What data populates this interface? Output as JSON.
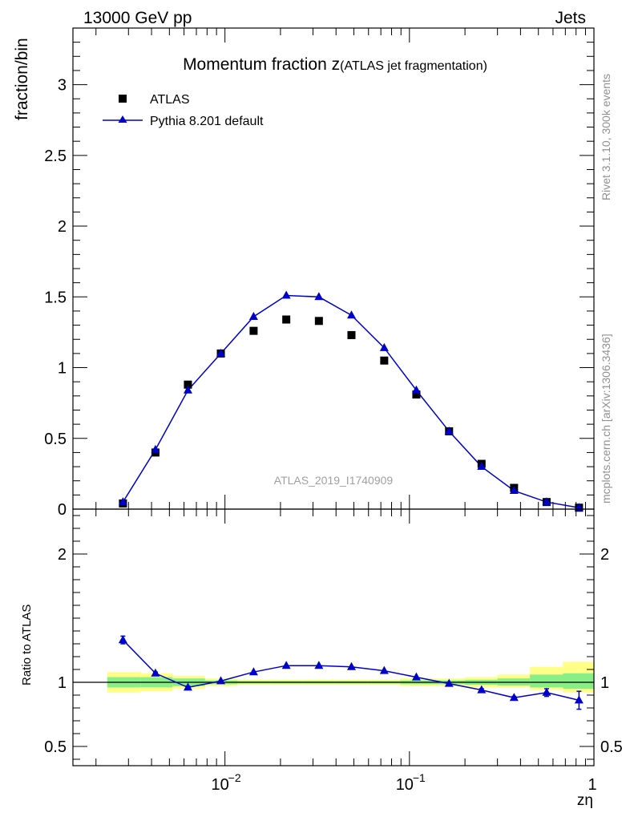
{
  "header": {
    "left": "13000 GeV pp",
    "right": "Jets"
  },
  "side_labels": {
    "events": "Rivet 3.1.10,  300k events",
    "source": "mcplots.cern.ch [arXiv:1306.3436]"
  },
  "watermark": "ATLAS_2019_I1740909",
  "chart_data": [
    {
      "type": "scatter",
      "title": "Momentum fraction z",
      "title_suffix": "(ATLAS jet fragmentation)",
      "ylabel": "fraction/bin",
      "xscale": "log",
      "xlim": [
        0.0015,
        1
      ],
      "ylim": [
        0,
        3.4
      ],
      "yticks": [
        0,
        0.5,
        1,
        1.5,
        2,
        2.5,
        3
      ],
      "ytick_labels": [
        "0",
        "0.5",
        "1",
        "1.5",
        "2",
        "2.5",
        "3"
      ],
      "legend_position": "top-left",
      "series": [
        {
          "name": "ATLAS",
          "marker": "square",
          "color": "#000000",
          "x": [
            0.0028,
            0.0042,
            0.0063,
            0.0095,
            0.0143,
            0.0215,
            0.0323,
            0.0485,
            0.073,
            0.109,
            0.164,
            0.246,
            0.369,
            0.554,
            0.83
          ],
          "y": [
            0.04,
            0.4,
            0.88,
            1.1,
            1.26,
            1.34,
            1.33,
            1.23,
            1.05,
            0.81,
            0.55,
            0.32,
            0.15,
            0.05,
            0.01
          ]
        },
        {
          "name": "Pythia 8.201 default",
          "marker": "triangle",
          "line": true,
          "color": "#0000cc",
          "x": [
            0.0028,
            0.0042,
            0.0063,
            0.0095,
            0.0143,
            0.0215,
            0.0323,
            0.0485,
            0.073,
            0.109,
            0.164,
            0.246,
            0.369,
            0.554,
            0.83
          ],
          "y": [
            0.05,
            0.42,
            0.84,
            1.1,
            1.36,
            1.51,
            1.5,
            1.37,
            1.14,
            0.84,
            0.55,
            0.3,
            0.13,
            0.05,
            0.01
          ]
        }
      ]
    },
    {
      "type": "line",
      "ylabel": "Ratio to ATLAS",
      "xlabel": "zη",
      "xscale": "log",
      "xlim": [
        0.0015,
        1
      ],
      "ylim": [
        0.35,
        2.35
      ],
      "yticks": [
        0.5,
        1,
        2
      ],
      "ytick_labels": [
        "0.5",
        "1",
        "2"
      ],
      "xticks": [
        0.01,
        0.1,
        1
      ],
      "xtick_labels": [
        "10",
        "10",
        "1"
      ],
      "xtick_exponents": [
        "−2",
        "−1",
        ""
      ],
      "reference_line": 1,
      "bin_edges": [
        0.0023,
        0.0035,
        0.0052,
        0.0078,
        0.0117,
        0.0176,
        0.0264,
        0.0396,
        0.0594,
        0.089,
        0.134,
        0.2,
        0.3,
        0.45,
        0.68,
        1.0
      ],
      "band_outer": {
        "color": "#ffff88",
        "low": [
          0.92,
          0.93,
          0.95,
          0.97,
          0.98,
          0.98,
          0.98,
          0.98,
          0.98,
          0.97,
          0.97,
          0.96,
          0.96,
          0.94,
          0.92
        ],
        "high": [
          1.08,
          1.07,
          1.05,
          1.03,
          1.02,
          1.02,
          1.02,
          1.02,
          1.02,
          1.03,
          1.03,
          1.04,
          1.06,
          1.12,
          1.16
        ]
      },
      "band_inner": {
        "color": "#88ee88",
        "low": [
          0.96,
          0.96,
          0.97,
          0.985,
          0.99,
          0.99,
          0.99,
          0.99,
          0.99,
          0.985,
          0.985,
          0.98,
          0.975,
          0.96,
          0.95
        ],
        "high": [
          1.04,
          1.04,
          1.03,
          1.015,
          1.01,
          1.01,
          1.01,
          1.01,
          1.01,
          1.015,
          1.015,
          1.02,
          1.03,
          1.06,
          1.07
        ]
      },
      "series": [
        {
          "name": "Pythia 8.201 default",
          "color": "#0000cc",
          "x": [
            0.0028,
            0.0042,
            0.0063,
            0.0095,
            0.0143,
            0.0215,
            0.0323,
            0.0485,
            0.073,
            0.109,
            0.164,
            0.246,
            0.369,
            0.554,
            0.83
          ],
          "y": [
            1.33,
            1.07,
            0.96,
            1.01,
            1.08,
            1.13,
            1.13,
            1.12,
            1.09,
            1.04,
            0.99,
            0.94,
            0.88,
            0.92,
            0.86
          ],
          "yerr": [
            0.03,
            0.01,
            0.01,
            0.005,
            0.005,
            0.005,
            0.005,
            0.005,
            0.005,
            0.005,
            0.005,
            0.01,
            0.01,
            0.03,
            0.07
          ]
        }
      ]
    }
  ]
}
